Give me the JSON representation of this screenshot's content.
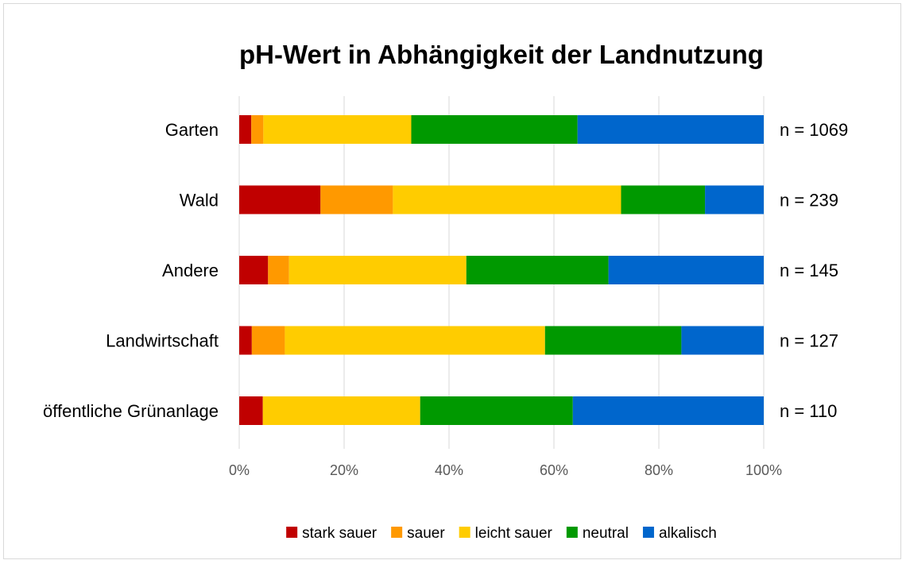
{
  "chart_data": {
    "type": "bar",
    "orientation": "horizontal",
    "stacked": "percent",
    "title": "pH-Wert in Abhängigkeit der Landnutzung",
    "categories": [
      "Garten",
      "Wald",
      "Andere",
      "Landwirtschaft",
      "öffentliche Grünanlage"
    ],
    "sample_sizes": [
      "n = 1069",
      "n = 239",
      "n = 145",
      "n = 127",
      "n = 110"
    ],
    "series": [
      {
        "name": "stark sauer",
        "color": "#c00000",
        "values": [
          2.3,
          15.5,
          5.5,
          2.4,
          4.5
        ]
      },
      {
        "name": "sauer",
        "color": "#ff9900",
        "values": [
          2.3,
          13.8,
          4.0,
          6.3,
          0.0
        ]
      },
      {
        "name": "leicht sauer",
        "color": "#ffcc00",
        "values": [
          28.2,
          43.5,
          33.8,
          49.6,
          30.0
        ]
      },
      {
        "name": "neutral",
        "color": "#009900",
        "values": [
          31.7,
          16.0,
          27.1,
          26.0,
          29.1
        ]
      },
      {
        "name": "alkalisch",
        "color": "#0066cc",
        "values": [
          35.5,
          11.2,
          29.6,
          15.7,
          36.4
        ]
      }
    ],
    "x_ticks": [
      "0%",
      "20%",
      "40%",
      "60%",
      "80%",
      "100%"
    ],
    "xlim": [
      0,
      100
    ],
    "grid": true,
    "legend_position": "bottom"
  }
}
